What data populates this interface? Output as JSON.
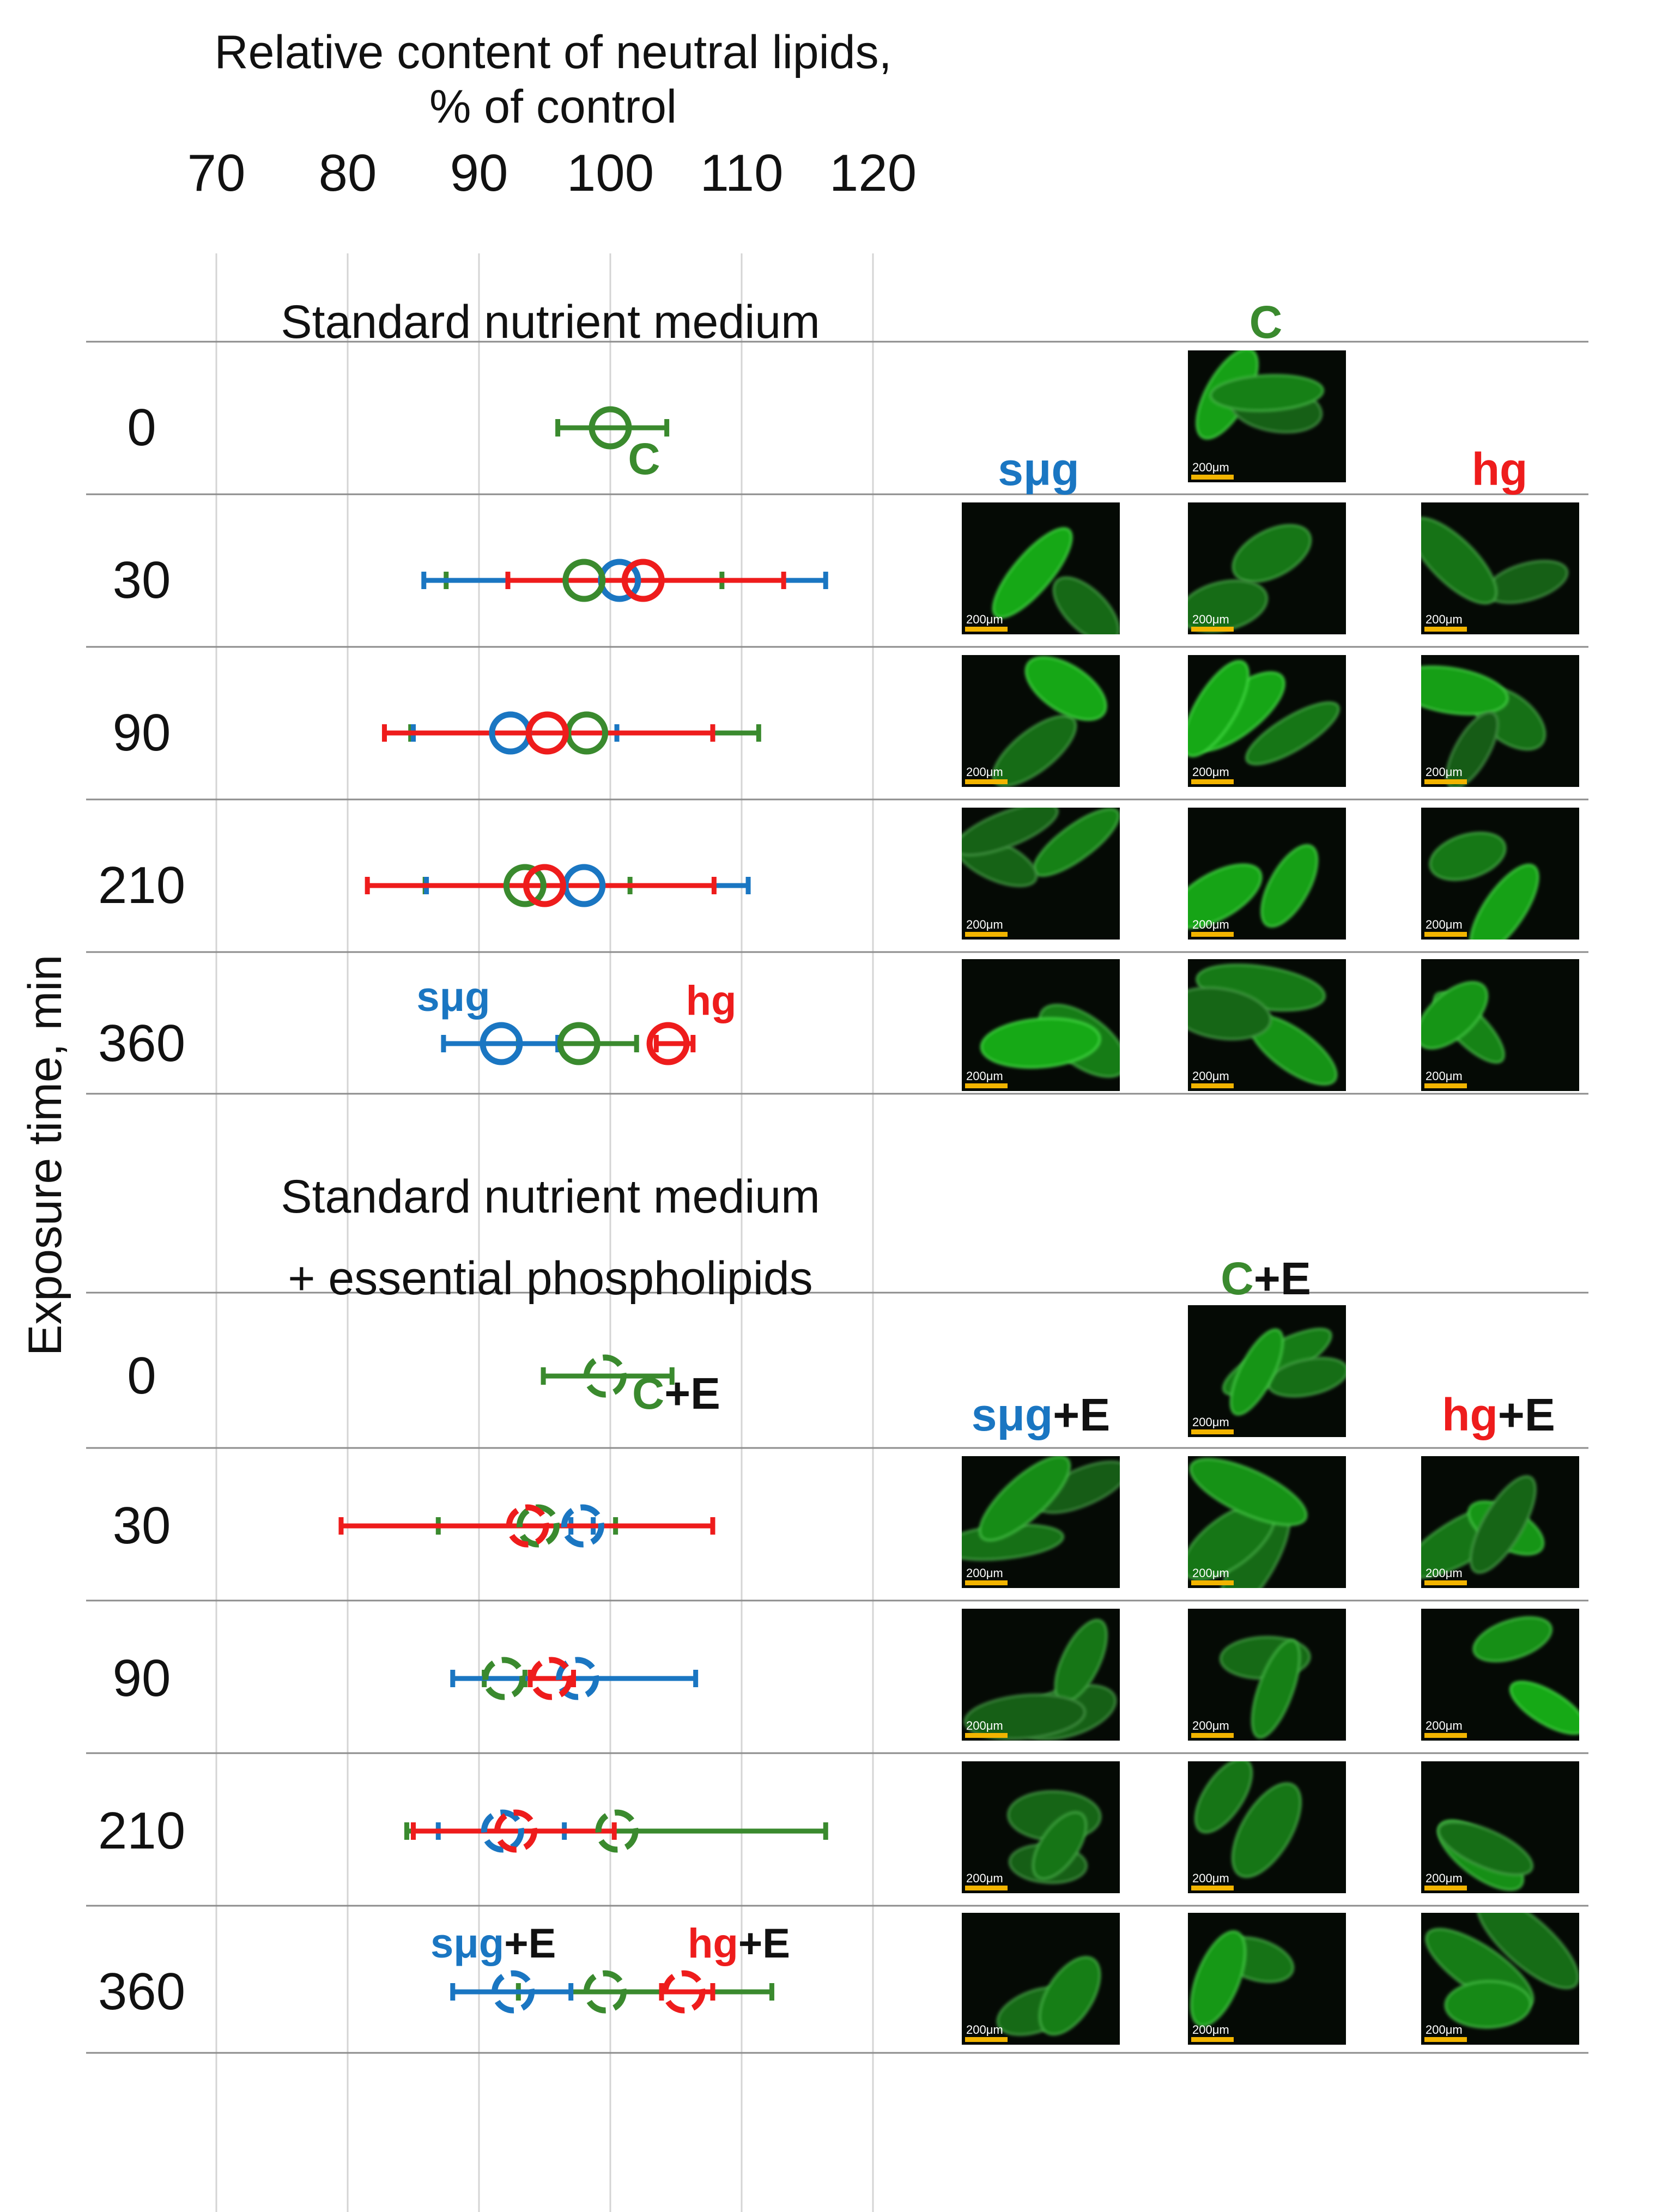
{
  "chart_data": {
    "type": "scatter",
    "orientation": "horizontal",
    "title": "Relative content of neutral lipids, % of control",
    "title_lines": [
      "Relative content of neutral lipids,",
      "% of control"
    ],
    "xlabel": "Relative content of neutral lipids, % of control",
    "ylabel": "Exposure time, min",
    "xlim": [
      60,
      120
    ],
    "xticks": [
      70,
      80,
      90,
      100,
      110,
      120
    ],
    "grid": true,
    "legend": "inline",
    "colors": {
      "C": "#3a8a2e",
      "smug": "#1a76c2",
      "hg": "#ee1c1c",
      "black": "#111111"
    },
    "panels": [
      {
        "id": "standard",
        "title_lines": [
          "Standard nutrient medium"
        ],
        "marker_style": "solid",
        "rows": [
          {
            "time": "0",
            "points": [
              {
                "group": "C",
                "value": 100.0,
                "err_low": 96.0,
                "err_high": 104.3
              }
            ]
          },
          {
            "time": "30",
            "points": [
              {
                "group": "C",
                "value": 98.0,
                "err_low": 87.5,
                "err_high": 108.5
              },
              {
                "group": "smug",
                "value": 100.7,
                "err_low": 85.8,
                "err_high": 116.4
              },
              {
                "group": "hg",
                "value": 102.5,
                "err_low": 92.2,
                "err_high": 113.2
              }
            ]
          },
          {
            "time": "90",
            "points": [
              {
                "group": "C",
                "value": 98.2,
                "err_low": 84.8,
                "err_high": 111.3
              },
              {
                "group": "smug",
                "value": 92.4,
                "err_low": 85.0,
                "err_high": 100.5
              },
              {
                "group": "hg",
                "value": 95.2,
                "err_low": 82.8,
                "err_high": 107.8
              }
            ]
          },
          {
            "time": "210",
            "points": [
              {
                "group": "C",
                "value": 93.5,
                "err_low": 85.9,
                "err_high": 101.5
              },
              {
                "group": "smug",
                "value": 98.0,
                "err_low": 86.0,
                "err_high": 110.5
              },
              {
                "group": "hg",
                "value": 95.0,
                "err_low": 81.5,
                "err_high": 107.9
              }
            ]
          },
          {
            "time": "360",
            "points": [
              {
                "group": "C",
                "value": 97.6,
                "err_low": 93.0,
                "err_high": 102.0
              },
              {
                "group": "smug",
                "value": 91.7,
                "err_low": 87.3,
                "err_high": 96.0
              },
              {
                "group": "hg",
                "value": 104.4,
                "err_low": 103.5,
                "err_high": 106.3
              }
            ]
          }
        ]
      },
      {
        "id": "phospholipids",
        "title_lines": [
          "Standard nutrient medium",
          "+ essential phospholipids"
        ],
        "marker_style": "dashed",
        "rows": [
          {
            "time": "0",
            "points": [
              {
                "group": "C",
                "value": 99.6,
                "err_low": 94.9,
                "err_high": 104.7
              }
            ]
          },
          {
            "time": "30",
            "points": [
              {
                "group": "C",
                "value": 94.5,
                "err_low": 86.9,
                "err_high": 100.4
              },
              {
                "group": "smug",
                "value": 97.9,
                "err_low": 97.0,
                "err_high": 98.7
              },
              {
                "group": "hg",
                "value": 93.7,
                "err_low": 79.5,
                "err_high": 107.8
              }
            ]
          },
          {
            "time": "90",
            "points": [
              {
                "group": "C",
                "value": 91.9,
                "err_low": 90.4,
                "err_high": 93.5
              },
              {
                "group": "smug",
                "value": 97.5,
                "err_low": 88.0,
                "err_high": 106.5
              },
              {
                "group": "hg",
                "value": 95.5,
                "err_low": 93.9,
                "err_high": 97.2
              }
            ]
          },
          {
            "time": "210",
            "points": [
              {
                "group": "C",
                "value": 100.5,
                "err_low": 84.5,
                "err_high": 116.4
              },
              {
                "group": "smug",
                "value": 91.8,
                "err_low": 86.9,
                "err_high": 96.5
              },
              {
                "group": "hg",
                "value": 92.8,
                "err_low": 85.0,
                "err_high": 100.3
              }
            ]
          },
          {
            "time": "360",
            "points": [
              {
                "group": "C",
                "value": 99.6,
                "err_low": 93.0,
                "err_high": 112.3
              },
              {
                "group": "smug",
                "value": 92.6,
                "err_low": 88.0,
                "err_high": 97.0
              },
              {
                "group": "hg",
                "value": 105.6,
                "err_low": 103.9,
                "err_high": 107.8
              }
            ]
          }
        ]
      }
    ]
  },
  "labels": {
    "smug": "sμg",
    "hg": "hg",
    "C": "C",
    "plus_e": "+E"
  },
  "micrographs": {
    "scale_bar": "200μm",
    "columns_standard": [
      "sμg",
      "C",
      "hg"
    ],
    "columns_phospholipids": [
      "sμg+E",
      "C+E",
      "hg+E"
    ]
  }
}
